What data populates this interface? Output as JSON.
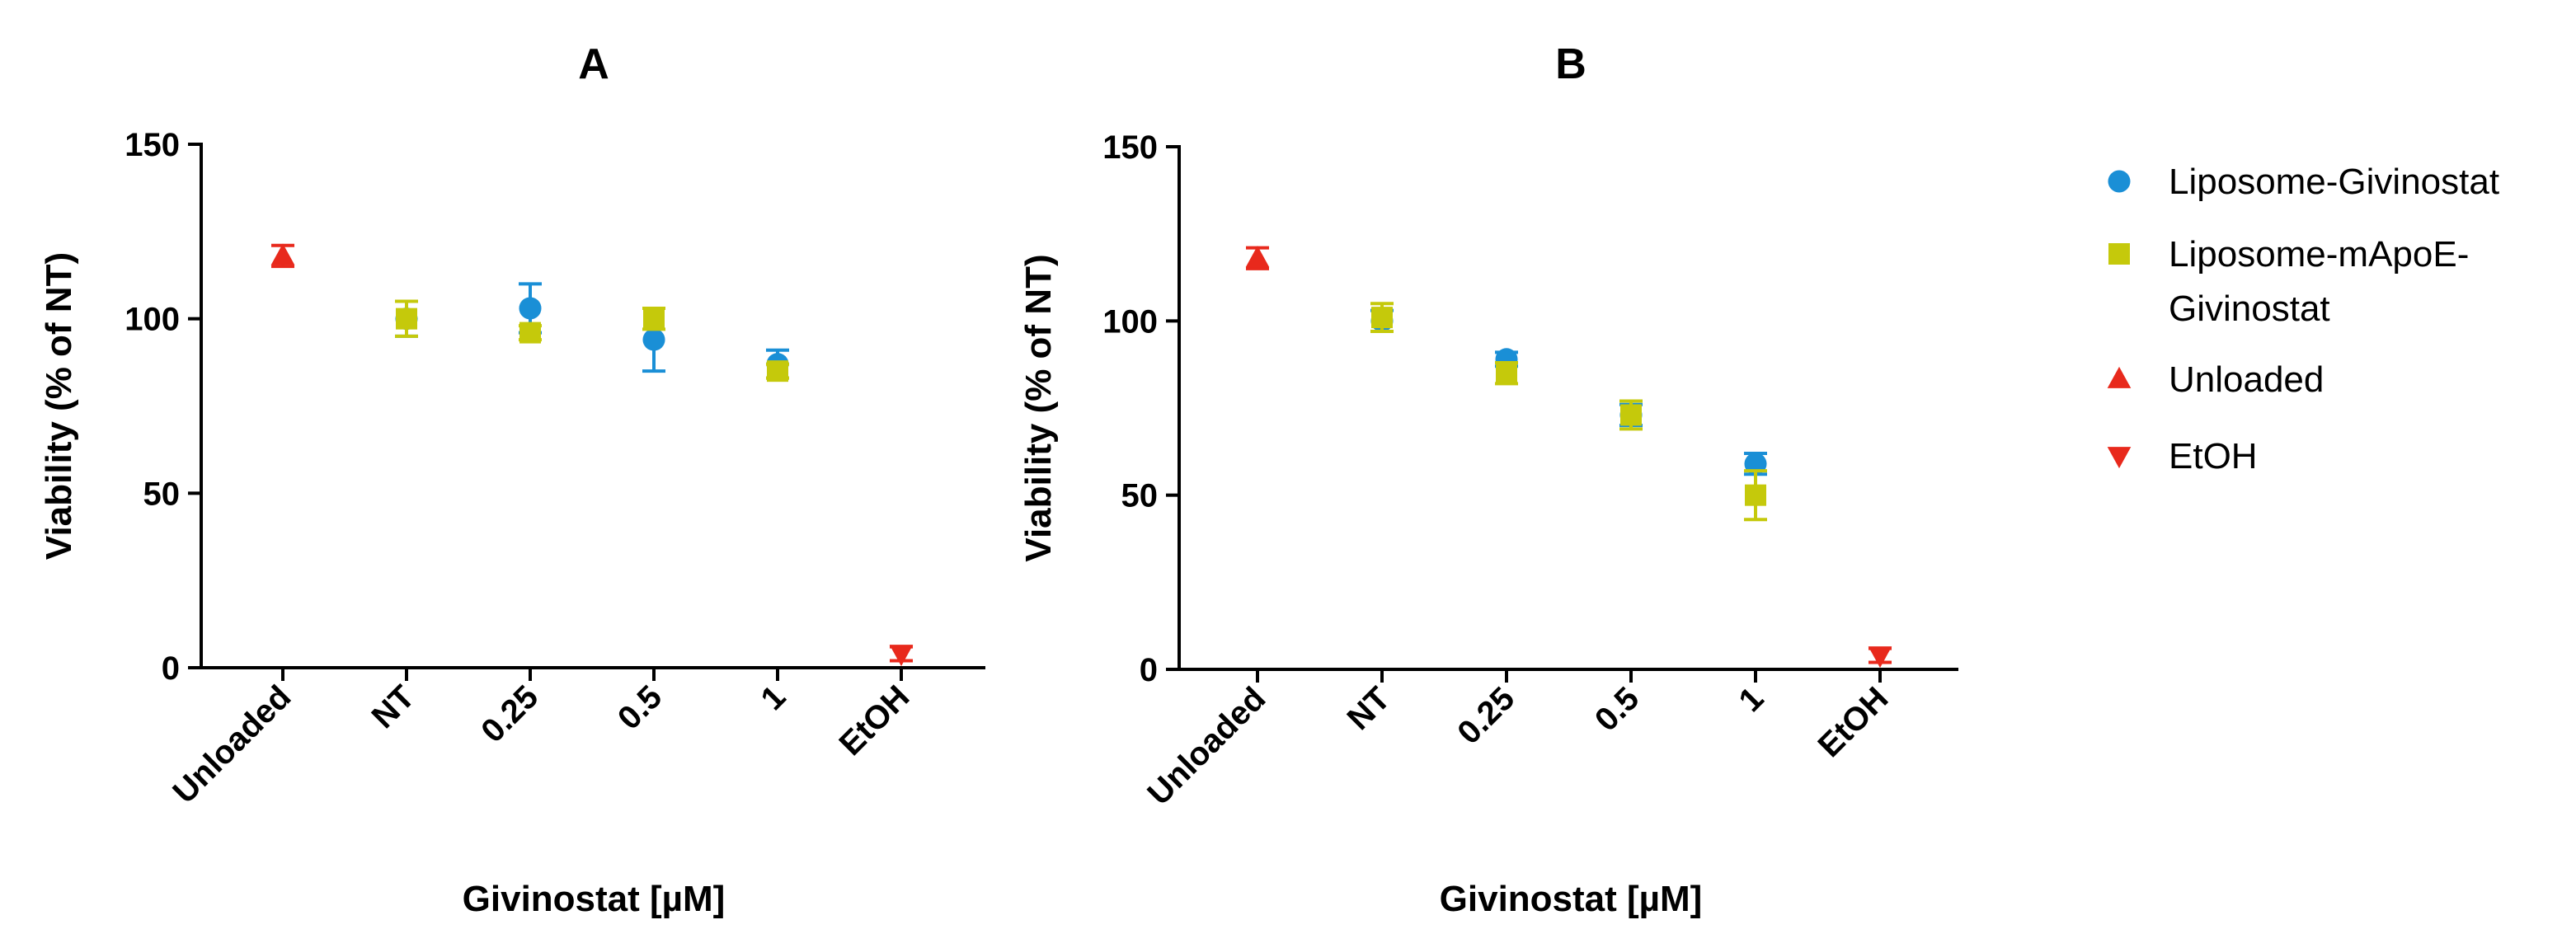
{
  "chart_data": [
    {
      "type": "scatter",
      "title": "A",
      "xlabel": "Givinostat [µM]",
      "ylabel": "Viability (% of NT)",
      "categories": [
        "Unloaded",
        "NT",
        "0.25",
        "0.5",
        "1",
        "EtOH"
      ],
      "ylim": [
        0,
        150
      ],
      "yticks": [
        0,
        50,
        100,
        150
      ],
      "series": [
        {
          "name": "Liposome-Givinostat",
          "marker": "circle",
          "color": "#1a8fd6",
          "points": [
            {
              "x": "NT",
              "y": 100,
              "err": 5
            },
            {
              "x": "0.25",
              "y": 103,
              "err": 7
            },
            {
              "x": "0.5",
              "y": 94,
              "err": 9
            },
            {
              "x": "1",
              "y": 87,
              "err": 4
            }
          ]
        },
        {
          "name": "Liposome-mApoE-Givinostat",
          "marker": "square",
          "color": "#c5c90b",
          "points": [
            {
              "x": "NT",
              "y": 100,
              "err": 5
            },
            {
              "x": "0.25",
              "y": 96,
              "err": 2
            },
            {
              "x": "0.5",
              "y": 100,
              "err": 3
            },
            {
              "x": "1",
              "y": 85,
              "err": 2
            }
          ]
        },
        {
          "name": "Unloaded",
          "marker": "triangle-up",
          "color": "#e8291c",
          "points": [
            {
              "x": "Unloaded",
              "y": 118,
              "err": 3
            }
          ]
        },
        {
          "name": "EtOH",
          "marker": "triangle-down",
          "color": "#e8291c",
          "points": [
            {
              "x": "EtOH",
              "y": 4,
              "err": 2
            }
          ]
        }
      ]
    },
    {
      "type": "scatter",
      "title": "B",
      "xlabel": "Givinostat [µM]",
      "ylabel": "Viability (% of NT)",
      "categories": [
        "Unloaded",
        "NT",
        "0.25",
        "0.5",
        "1",
        "EtOH"
      ],
      "ylim": [
        0,
        150
      ],
      "yticks": [
        0,
        50,
        100,
        150
      ],
      "series": [
        {
          "name": "Liposome-Givinostat",
          "marker": "circle",
          "color": "#1a8fd6",
          "points": [
            {
              "x": "NT",
              "y": 100,
              "err": 3
            },
            {
              "x": "0.25",
              "y": 89,
              "err": 2
            },
            {
              "x": "0.5",
              "y": 73,
              "err": 3
            },
            {
              "x": "1",
              "y": 59,
              "err": 3
            }
          ]
        },
        {
          "name": "Liposome-mApoE-Givinostat",
          "marker": "square",
          "color": "#c5c90b",
          "points": [
            {
              "x": "NT",
              "y": 101,
              "err": 4
            },
            {
              "x": "0.25",
              "y": 85,
              "err": 3
            },
            {
              "x": "0.5",
              "y": 73,
              "err": 4
            },
            {
              "x": "1",
              "y": 50,
              "err": 7
            }
          ]
        },
        {
          "name": "Unloaded",
          "marker": "triangle-up",
          "color": "#e8291c",
          "points": [
            {
              "x": "Unloaded",
              "y": 118,
              "err": 3
            }
          ]
        },
        {
          "name": "EtOH",
          "marker": "triangle-down",
          "color": "#e8291c",
          "points": [
            {
              "x": "EtOH",
              "y": 4,
              "err": 2
            }
          ]
        }
      ]
    }
  ],
  "legend": {
    "items": [
      {
        "label_lines": [
          "Liposome-Givinostat"
        ],
        "marker": "circle",
        "color": "#1a8fd6"
      },
      {
        "label_lines": [
          "Liposome-mApoE-",
          "Givinostat"
        ],
        "marker": "square",
        "color": "#c5c90b"
      },
      {
        "label_lines": [
          "Unloaded"
        ],
        "marker": "triangle-up",
        "color": "#e8291c"
      },
      {
        "label_lines": [
          "EtOH"
        ],
        "marker": "triangle-down",
        "color": "#e8291c"
      }
    ]
  }
}
